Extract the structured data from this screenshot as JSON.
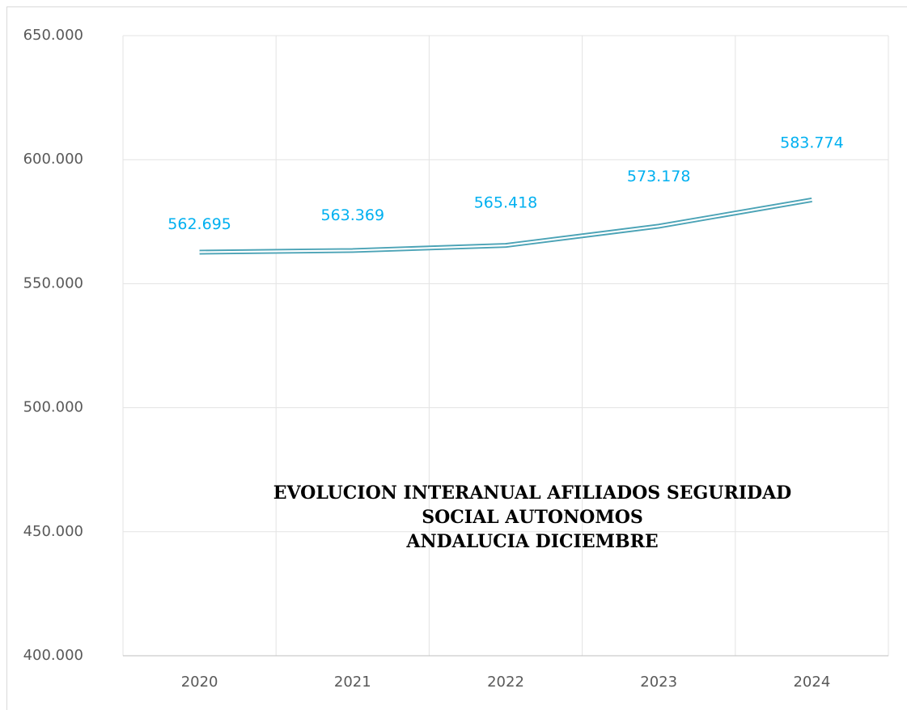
{
  "chart_data": {
    "type": "line",
    "title": [
      "EVOLUCION INTERANUAL AFILIADOS SEGURIDAD",
      "SOCIAL AUTONOMOS",
      "ANDALUCIA DICIEMBRE"
    ],
    "categories": [
      "2020",
      "2021",
      "2022",
      "2023",
      "2024"
    ],
    "series": [
      {
        "name": null,
        "color": "#4ba3b6",
        "values": [
          562695,
          563369,
          565418,
          573178,
          583774
        ],
        "value_labels": [
          "562.695",
          "563.369",
          "565.418",
          "573.178",
          "583.774"
        ],
        "label_color": "#00b0f0"
      }
    ],
    "ylim": [
      400000,
      650000
    ],
    "yticks": [
      {
        "value": 400000,
        "label": "400.000"
      },
      {
        "value": 450000,
        "label": "450.000"
      },
      {
        "value": 500000,
        "label": "500.000"
      },
      {
        "value": 550000,
        "label": "550.000"
      },
      {
        "value": 600000,
        "label": "600.000"
      },
      {
        "value": 650000,
        "label": "650.000"
      }
    ],
    "grid": true
  }
}
